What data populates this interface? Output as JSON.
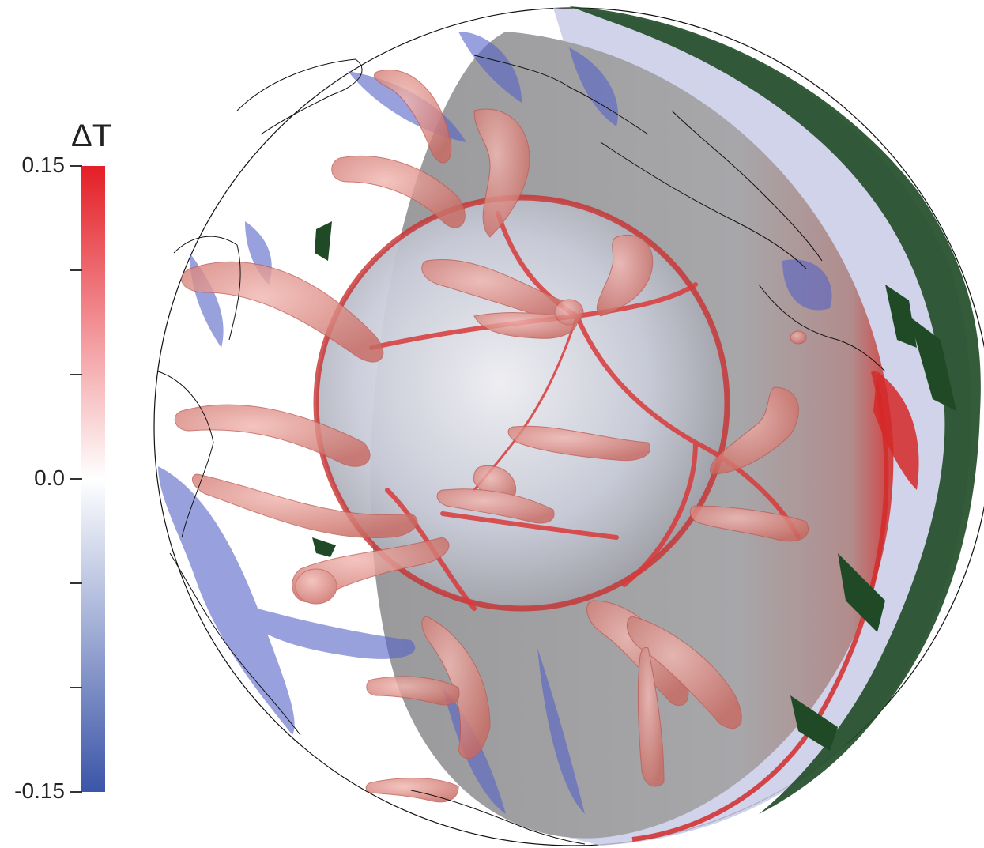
{
  "colorbar": {
    "title": "ΔT",
    "ticks": [
      {
        "label": "0.15",
        "value": 0.15,
        "labeled": true
      },
      {
        "label": "",
        "value": 0.1,
        "labeled": false
      },
      {
        "label": "",
        "value": 0.05,
        "labeled": false
      },
      {
        "label": "0.0",
        "value": 0.0,
        "labeled": true
      },
      {
        "label": "",
        "value": -0.05,
        "labeled": false
      },
      {
        "label": "",
        "value": -0.1,
        "labeled": false
      },
      {
        "label": "-0.15",
        "value": -0.15,
        "labeled": true
      }
    ],
    "range": [
      -0.15,
      0.15
    ],
    "colors": {
      "max": "#e41e26",
      "mid": "#ffffff",
      "min": "#3b55a8"
    }
  },
  "visual": {
    "mantle_color": "#8f8f91",
    "plume_color": "#d98a83",
    "slab_color": "#5660c4",
    "arrow_color": "#1f4a25",
    "coastline_color": "#111111"
  }
}
